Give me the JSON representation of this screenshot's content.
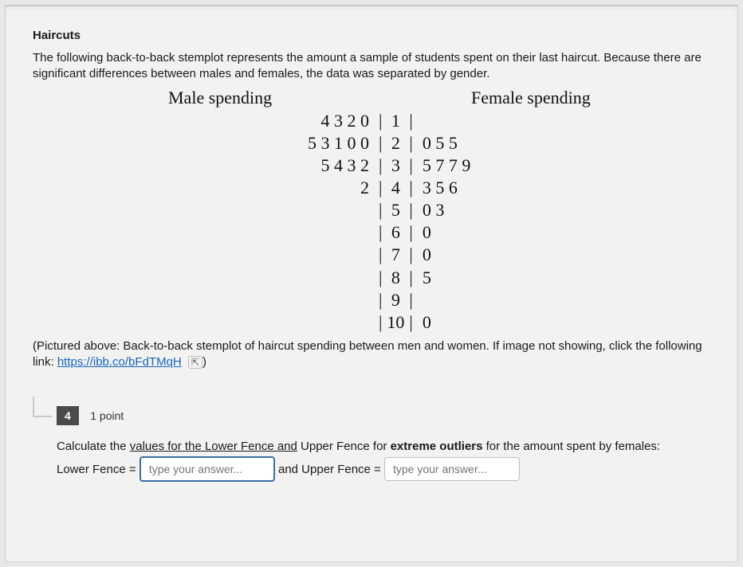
{
  "title": "Haircuts",
  "description": "The following back-to-back stemplot represents the amount a sample of students spent on their last haircut. Because there are significant differences between males and females, the data was separated by gender.",
  "stemplot": {
    "left_heading": "Male spending",
    "right_heading": "Female spending",
    "rows": [
      {
        "left": "4 3 2 0",
        "stem": "1",
        "right": ""
      },
      {
        "left": "5 3 1 0 0",
        "stem": "2",
        "right": "0 5 5"
      },
      {
        "left": "5 4 3 2",
        "stem": "3",
        "right": "5 7 7 9"
      },
      {
        "left": "2",
        "stem": "4",
        "right": "3 5 6"
      },
      {
        "left": "",
        "stem": "5",
        "right": "0 3"
      },
      {
        "left": "",
        "stem": "6",
        "right": "0"
      },
      {
        "left": "",
        "stem": "7",
        "right": "0"
      },
      {
        "left": "",
        "stem": "8",
        "right": "5"
      },
      {
        "left": "",
        "stem": "9",
        "right": ""
      },
      {
        "left": "",
        "stem": "10",
        "right": "0"
      }
    ],
    "font_family": "serif",
    "font_size_pt": 16,
    "text_color": "#111111"
  },
  "caption_prefix": "(Pictured above: Back-to-back stemplot of haircut spending between men and women. If image not showing, click the following link: ",
  "caption_link": "https://ibb.co/bFdTMqH",
  "caption_suffix": ")",
  "external_icon_glyph": "⇱",
  "question": {
    "number": "4",
    "points": "1 point",
    "prompt_before": "Calculate the ",
    "prompt_underlined": "values for the Lower Fence and",
    "prompt_mid": " Upper Fence for ",
    "prompt_bold": "extreme outliers",
    "prompt_after": " for the amount spent by females:",
    "lower_label": "Lower Fence = ",
    "and_label": "and Upper Fence = ",
    "placeholder": "type your answer...",
    "input_border_active": "#3b6ea5",
    "input_border_idle": "#bdbdbd"
  },
  "colors": {
    "page_bg": "#f2f2f0",
    "body_bg": "#e8e8e6",
    "text": "#1a1a1a",
    "link": "#1565c0",
    "qnum_bg": "#4a4a4a"
  }
}
